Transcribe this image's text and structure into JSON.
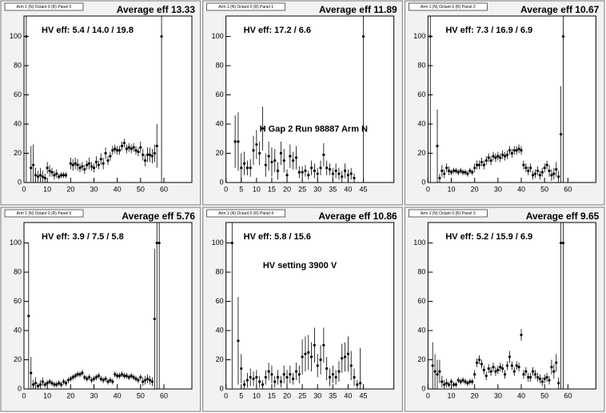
{
  "chart_data": [
    {
      "type": "scatter",
      "title": "Arm 1 (N) Octant 0 (R) Panel 0",
      "stat": "Average eff 13.33",
      "annotation": "HV eff:   5.4 / 14.0 / 19.8",
      "xlim": [
        0,
        72
      ],
      "ylim": [
        0,
        114
      ],
      "xticks": [
        0,
        10,
        20,
        30,
        40,
        50,
        60
      ],
      "yticks": [
        0,
        20,
        40,
        60,
        80,
        100
      ],
      "x": [
        1,
        3,
        4,
        5,
        6,
        7,
        8,
        9,
        10,
        11,
        12,
        13,
        14,
        15,
        16,
        17,
        18,
        20,
        21,
        22,
        23,
        24,
        25,
        26,
        27,
        28,
        29,
        30,
        31,
        32,
        33,
        34,
        35,
        36,
        37,
        38,
        39,
        40,
        41,
        42,
        43,
        44,
        45,
        46,
        47,
        48,
        49,
        50,
        51,
        52,
        53,
        54,
        55,
        56,
        57,
        59
      ],
      "values": [
        100,
        10,
        12,
        5,
        4,
        5,
        4,
        3,
        10,
        8,
        7,
        5,
        6,
        4,
        5,
        5,
        5,
        13,
        12,
        13,
        12,
        10,
        11,
        9,
        12,
        13,
        11,
        10,
        14,
        12,
        16,
        13,
        20,
        15,
        18,
        22,
        23,
        22,
        22,
        25,
        27,
        23,
        24,
        23,
        24,
        22,
        21,
        24,
        19,
        15,
        19,
        19,
        18,
        20,
        25,
        100
      ],
      "errors": [
        100,
        15,
        14,
        5,
        4,
        5,
        4,
        3,
        4,
        4,
        3,
        3,
        3,
        2,
        2,
        2,
        2,
        4,
        4,
        4,
        4,
        3,
        3,
        3,
        3,
        4,
        3,
        3,
        4,
        3,
        4,
        4,
        4,
        3,
        3,
        3,
        3,
        3,
        3,
        3,
        3,
        3,
        3,
        3,
        3,
        3,
        3,
        4,
        4,
        4,
        5,
        5,
        5,
        6,
        15,
        100
      ]
    },
    {
      "type": "scatter",
      "title": "Arm 1 (N) Octant 0 (R) Panel 1",
      "stat": "Average eff 11.89",
      "annotation": "HV eff:   17.2 / 6.6",
      "note": "H Gap 2 Run 98887 Arm N",
      "xlim": [
        0,
        55
      ],
      "ylim": [
        0,
        114
      ],
      "xticks": [
        0,
        5,
        10,
        15,
        20,
        25,
        30,
        35,
        40,
        45
      ],
      "yticks": [
        0,
        20,
        40,
        60,
        80,
        100
      ],
      "x": [
        3,
        4,
        5,
        6,
        7,
        8,
        9,
        10,
        11,
        12,
        13,
        14,
        15,
        16,
        17,
        18,
        19,
        20,
        21,
        22,
        23,
        24,
        25,
        26,
        27,
        28,
        29,
        30,
        31,
        32,
        33,
        34,
        35,
        36,
        37,
        38,
        39,
        40,
        41,
        42,
        45
      ],
      "values": [
        28,
        28,
        10,
        13,
        10,
        10,
        22,
        26,
        20,
        37,
        12,
        18,
        14,
        15,
        8,
        20,
        15,
        5,
        18,
        15,
        17,
        7,
        7,
        8,
        5,
        10,
        8,
        6,
        10,
        19,
        10,
        9,
        6,
        8,
        6,
        4,
        8,
        5,
        6,
        3,
        100
      ],
      "errors": [
        18,
        20,
        10,
        8,
        5,
        6,
        10,
        10,
        8,
        15,
        8,
        10,
        10,
        8,
        6,
        8,
        8,
        4,
        8,
        6,
        8,
        4,
        4,
        4,
        3,
        5,
        5,
        4,
        5,
        8,
        5,
        4,
        4,
        5,
        4,
        4,
        5,
        4,
        4,
        3,
        100
      ]
    },
    {
      "type": "scatter",
      "title": "Arm 1 (N) Octant 0 (R) Panel 2",
      "stat": "Average eff 10.67",
      "annotation": "HV eff:   7.3 / 16.9 / 6.9",
      "xlim": [
        0,
        72
      ],
      "ylim": [
        0,
        114
      ],
      "xticks": [
        0,
        10,
        20,
        30,
        40,
        50,
        60
      ],
      "yticks": [
        0,
        20,
        40,
        60,
        80,
        100
      ],
      "x": [
        1,
        4,
        5,
        6,
        7,
        8,
        9,
        10,
        11,
        12,
        13,
        14,
        15,
        16,
        17,
        18,
        19,
        20,
        21,
        22,
        23,
        24,
        25,
        26,
        27,
        28,
        29,
        30,
        31,
        32,
        33,
        34,
        35,
        36,
        37,
        38,
        39,
        40,
        41,
        42,
        43,
        44,
        45,
        46,
        47,
        48,
        49,
        50,
        51,
        52,
        53,
        54,
        55,
        56,
        57,
        58
      ],
      "values": [
        100,
        25,
        3,
        8,
        6,
        10,
        8,
        7,
        8,
        8,
        7,
        8,
        7,
        7,
        6,
        8,
        7,
        10,
        12,
        12,
        14,
        12,
        15,
        17,
        15,
        18,
        17,
        18,
        17,
        19,
        18,
        19,
        22,
        20,
        22,
        22,
        23,
        22,
        12,
        10,
        8,
        10,
        5,
        6,
        8,
        5,
        7,
        10,
        12,
        8,
        5,
        6,
        9,
        4,
        33,
        100
      ],
      "errors": [
        100,
        25,
        3,
        4,
        3,
        3,
        3,
        2,
        2,
        2,
        2,
        2,
        2,
        2,
        2,
        2,
        2,
        3,
        3,
        3,
        3,
        3,
        3,
        3,
        3,
        3,
        3,
        3,
        3,
        3,
        3,
        3,
        3,
        3,
        3,
        3,
        3,
        3,
        3,
        3,
        3,
        3,
        3,
        3,
        3,
        3,
        3,
        3,
        3,
        4,
        4,
        4,
        5,
        4,
        33,
        100
      ]
    },
    {
      "type": "scatter",
      "title": "Arm 1 (N) Octant 0 (R) Panel 5",
      "stat": "Average eff 5.76",
      "annotation": "HV eff:   3.9 / 7.5 / 5.8",
      "xlim": [
        0,
        72
      ],
      "ylim": [
        0,
        114
      ],
      "xticks": [
        0,
        10,
        20,
        30,
        40,
        50,
        60
      ],
      "yticks": [
        0,
        20,
        40,
        60,
        80,
        100
      ],
      "x": [
        2,
        3,
        4,
        5,
        6,
        7,
        8,
        9,
        10,
        11,
        12,
        13,
        14,
        15,
        16,
        17,
        18,
        19,
        20,
        21,
        22,
        23,
        24,
        25,
        26,
        27,
        28,
        29,
        30,
        31,
        32,
        33,
        34,
        35,
        36,
        37,
        38,
        39,
        40,
        41,
        42,
        43,
        44,
        45,
        46,
        47,
        48,
        49,
        50,
        51,
        52,
        53,
        54,
        55,
        56,
        57,
        58
      ],
      "values": [
        50,
        11,
        3,
        4,
        2,
        3,
        5,
        3,
        4,
        5,
        4,
        3,
        3,
        4,
        3,
        5,
        4,
        6,
        7,
        8,
        9,
        10,
        10,
        11,
        8,
        7,
        8,
        6,
        7,
        8,
        9,
        7,
        6,
        7,
        5,
        6,
        5,
        10,
        9,
        9,
        10,
        9,
        9,
        8,
        9,
        8,
        7,
        6,
        8,
        5,
        6,
        7,
        6,
        5,
        48,
        100,
        100
      ],
      "errors": [
        50,
        11,
        3,
        4,
        2,
        3,
        3,
        2,
        2,
        2,
        2,
        2,
        2,
        2,
        2,
        2,
        2,
        2,
        2,
        2,
        2,
        2,
        2,
        2,
        2,
        2,
        2,
        2,
        2,
        2,
        2,
        2,
        2,
        2,
        2,
        2,
        2,
        2,
        2,
        2,
        2,
        2,
        2,
        2,
        2,
        2,
        2,
        2,
        2,
        3,
        3,
        3,
        3,
        3,
        48,
        100,
        100
      ]
    },
    {
      "type": "scatter",
      "title": "Arm 1 (N) Octant 0 (R) Panel 4",
      "stat": "Average eff 10.86",
      "annotation": "HV eff:   5.8 / 15.6",
      "note": "HV setting 3900 V",
      "xlim": [
        0,
        55
      ],
      "ylim": [
        0,
        114
      ],
      "xticks": [
        0,
        5,
        10,
        15,
        20,
        25,
        30,
        35,
        40,
        45
      ],
      "yticks": [
        0,
        20,
        40,
        60,
        80,
        100
      ],
      "x": [
        2,
        4,
        5,
        6,
        7,
        8,
        9,
        10,
        11,
        12,
        13,
        14,
        15,
        16,
        17,
        18,
        19,
        20,
        21,
        22,
        23,
        24,
        25,
        26,
        27,
        28,
        29,
        30,
        31,
        32,
        33,
        34,
        35,
        36,
        37,
        38,
        39,
        40,
        41,
        42,
        43,
        44
      ],
      "values": [
        100,
        33,
        14,
        3,
        6,
        8,
        7,
        8,
        5,
        3,
        8,
        12,
        10,
        5,
        8,
        5,
        10,
        8,
        10,
        7,
        12,
        10,
        22,
        24,
        25,
        22,
        30,
        16,
        20,
        30,
        14,
        8,
        10,
        8,
        12,
        21,
        22,
        24,
        16,
        8,
        3,
        4
      ],
      "errors": [
        100,
        30,
        10,
        3,
        5,
        6,
        5,
        5,
        4,
        3,
        5,
        6,
        6,
        4,
        5,
        4,
        6,
        5,
        6,
        4,
        6,
        6,
        12,
        12,
        12,
        10,
        12,
        8,
        10,
        12,
        8,
        6,
        6,
        5,
        7,
        10,
        10,
        12,
        10,
        6,
        3,
        24
      ]
    },
    {
      "type": "scatter",
      "title": "Arm 1 (N) Octant 0 (R) Panel 3",
      "stat": "Average eff 9.65",
      "annotation": "HV eff:   5.2 / 15.9 / 6.9",
      "xlim": [
        0,
        72
      ],
      "ylim": [
        0,
        114
      ],
      "xticks": [
        0,
        10,
        20,
        30,
        40,
        50,
        60
      ],
      "yticks": [
        0,
        20,
        40,
        60,
        80,
        100
      ],
      "x": [
        2,
        3,
        4,
        5,
        6,
        7,
        8,
        9,
        10,
        11,
        12,
        13,
        14,
        15,
        16,
        17,
        18,
        19,
        20,
        21,
        22,
        23,
        24,
        25,
        26,
        27,
        28,
        29,
        30,
        31,
        32,
        33,
        34,
        35,
        36,
        37,
        38,
        39,
        40,
        41,
        42,
        43,
        44,
        45,
        46,
        47,
        48,
        49,
        50,
        51,
        52,
        53,
        54,
        55,
        56,
        57,
        58
      ],
      "values": [
        16,
        12,
        10,
        12,
        5,
        3,
        4,
        3,
        5,
        3,
        3,
        6,
        5,
        6,
        5,
        4,
        5,
        5,
        10,
        18,
        20,
        17,
        13,
        9,
        14,
        12,
        15,
        12,
        13,
        15,
        14,
        10,
        16,
        22,
        16,
        12,
        16,
        15,
        37,
        10,
        12,
        8,
        8,
        12,
        10,
        8,
        7,
        5,
        7,
        8,
        6,
        15,
        12,
        18,
        4,
        100,
        100
      ],
      "errors": [
        16,
        12,
        10,
        8,
        4,
        3,
        3,
        2,
        2,
        2,
        2,
        2,
        2,
        2,
        2,
        2,
        2,
        2,
        3,
        3,
        3,
        3,
        3,
        3,
        3,
        3,
        3,
        3,
        3,
        3,
        3,
        3,
        3,
        4,
        3,
        3,
        3,
        3,
        4,
        3,
        3,
        3,
        3,
        3,
        3,
        3,
        3,
        3,
        3,
        3,
        3,
        5,
        5,
        6,
        4,
        100,
        100
      ]
    }
  ]
}
